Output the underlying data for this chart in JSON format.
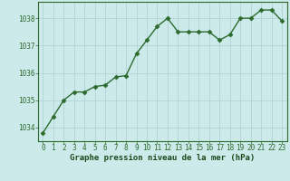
{
  "x": [
    0,
    1,
    2,
    3,
    4,
    5,
    6,
    7,
    8,
    9,
    10,
    11,
    12,
    13,
    14,
    15,
    16,
    17,
    18,
    19,
    20,
    21,
    22,
    23
  ],
  "y": [
    1033.8,
    1034.4,
    1035.0,
    1035.3,
    1035.3,
    1035.5,
    1035.55,
    1035.85,
    1035.9,
    1036.7,
    1037.2,
    1037.7,
    1038.0,
    1037.5,
    1037.5,
    1037.5,
    1037.5,
    1037.2,
    1037.4,
    1038.0,
    1038.0,
    1038.3,
    1038.3,
    1037.9
  ],
  "ylim": [
    1033.5,
    1038.6
  ],
  "yticks": [
    1034,
    1035,
    1036,
    1037,
    1038
  ],
  "xticks": [
    0,
    1,
    2,
    3,
    4,
    5,
    6,
    7,
    8,
    9,
    10,
    11,
    12,
    13,
    14,
    15,
    16,
    17,
    18,
    19,
    20,
    21,
    22,
    23
  ],
  "line_color": "#2d6a2d",
  "marker_color": "#2d6a2d",
  "bg_color": "#cceaea",
  "grid_color": "#aad0d0",
  "xlabel": "Graphe pression niveau de la mer (hPa)",
  "xlabel_color": "#1a4a1a",
  "xlabel_fontsize": 6.5,
  "tick_label_color": "#2d6a2d",
  "tick_label_fontsize": 5.5,
  "line_width": 1.0,
  "marker_size": 2.5
}
